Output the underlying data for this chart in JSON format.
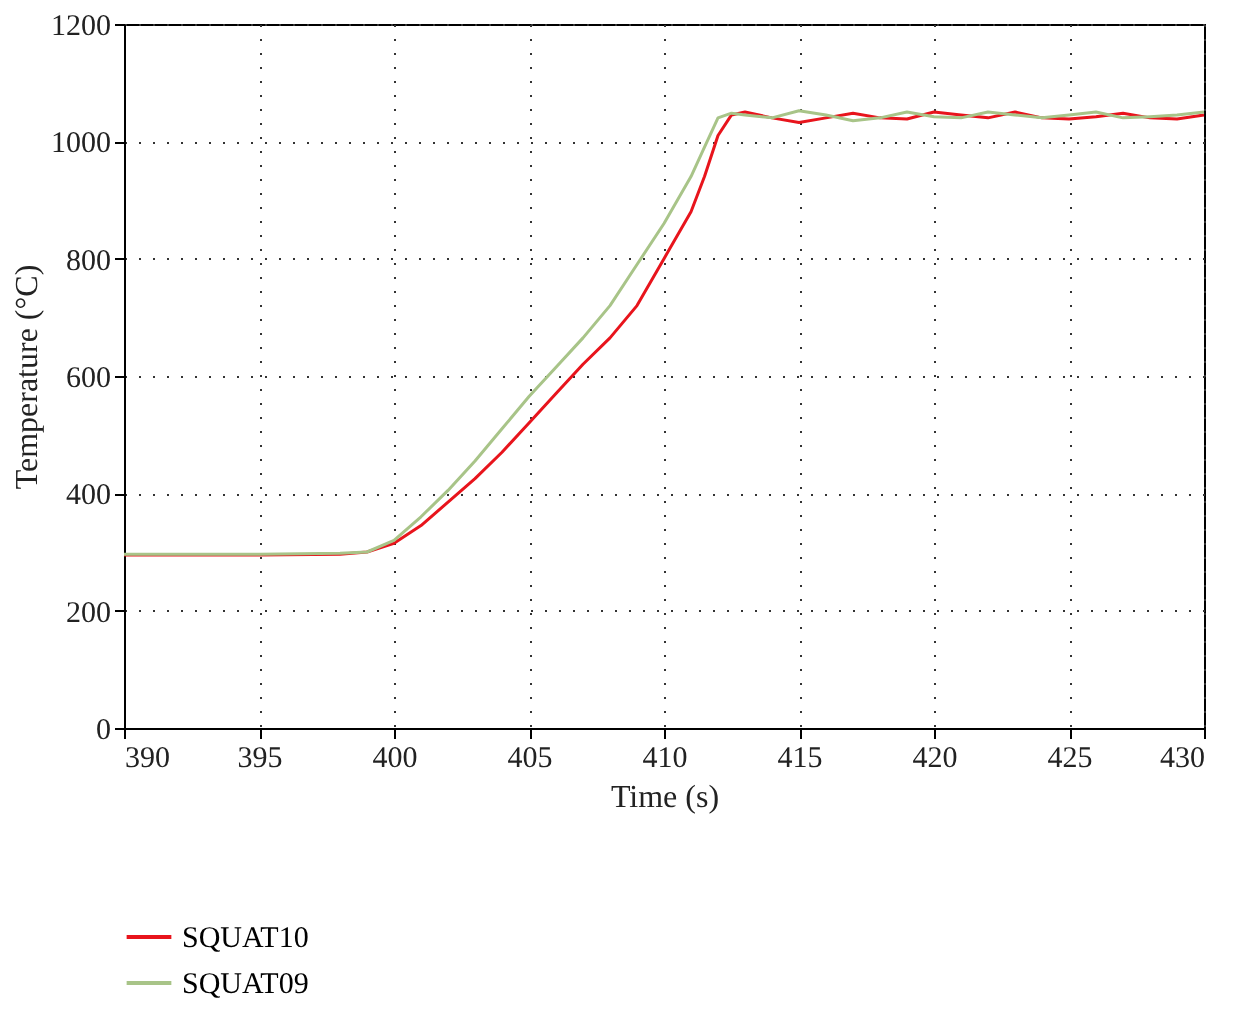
{
  "chart_data": {
    "type": "line",
    "xlabel": "Time (s)",
    "ylabel": "Temperature (°C)",
    "xlim": [
      390,
      430
    ],
    "xticks": [
      390,
      395,
      400,
      405,
      410,
      415,
      420,
      425,
      430
    ],
    "ylim": [
      0,
      1200
    ],
    "yticks": [
      0,
      200,
      400,
      600,
      800,
      1000,
      1200
    ],
    "grid": true,
    "legend": "bottom",
    "line_style": "solid",
    "marker": "none",
    "series": [
      {
        "name": "SQUAT10",
        "color": "#e8141c",
        "x": [
          390,
          395,
          398,
          399,
          400,
          401,
          402,
          403,
          404,
          405,
          406,
          407,
          408,
          409,
          410,
          411,
          411.5,
          412,
          412.5,
          413,
          414,
          415,
          416,
          417,
          418,
          419,
          420,
          421,
          422,
          423,
          424,
          425,
          426,
          427,
          428,
          429,
          430
        ],
        "values": [
          295,
          295,
          296,
          300,
          315,
          345,
          385,
          425,
          470,
          520,
          570,
          620,
          665,
          720,
          800,
          880,
          940,
          1010,
          1045,
          1050,
          1040,
          1032,
          1040,
          1048,
          1040,
          1038,
          1050,
          1045,
          1040,
          1050,
          1040,
          1038,
          1042,
          1048,
          1040,
          1038,
          1045
        ]
      },
      {
        "name": "SQUAT09",
        "color": "#a8c488",
        "x": [
          390,
          395,
          398,
          399,
          400,
          401,
          402,
          403,
          404,
          405,
          406,
          407,
          408,
          409,
          410,
          411,
          411.5,
          412,
          412.5,
          413,
          414,
          415,
          416,
          417,
          418,
          419,
          420,
          421,
          422,
          423,
          424,
          425,
          426,
          427,
          428,
          429,
          430
        ],
        "values": [
          296,
          296,
          298,
          300,
          320,
          360,
          405,
          455,
          510,
          565,
          615,
          665,
          720,
          790,
          860,
          940,
          990,
          1040,
          1048,
          1045,
          1040,
          1052,
          1045,
          1035,
          1040,
          1050,
          1042,
          1040,
          1050,
          1045,
          1040,
          1045,
          1050,
          1040,
          1042,
          1045,
          1050
        ]
      }
    ]
  }
}
